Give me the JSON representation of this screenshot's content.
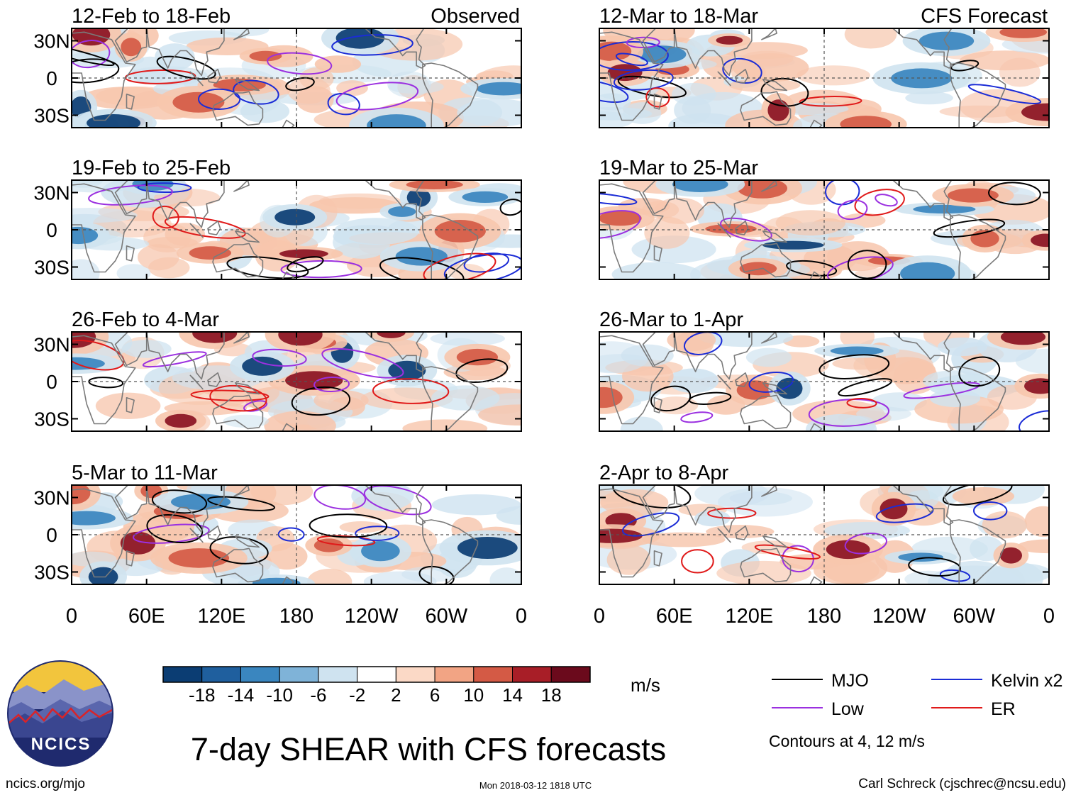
{
  "title": "7-day SHEAR with CFS forecasts",
  "source_url": "ncics.org/mjo",
  "logo_text": "NCICS",
  "timestamp": "Mon 2018-03-12 1818 UTC",
  "author": "Carl Schreck (cjschrec@ncsu.edu)",
  "colors": {
    "strong_neg": "#0b3d73",
    "mid_neg": "#3a86bf",
    "weak_neg": "#cfe3f0",
    "weak_pos": "#f7c6ad",
    "mid_pos": "#d45a45",
    "strong_pos": "#8a1222",
    "mjo": "#000000",
    "kelvin": "#1b2cd6",
    "low": "#9b30e0",
    "er": "#e01a1a",
    "coast": "#7a7a7a"
  },
  "chart_data": {
    "type": "heatmap",
    "title": "7-day SHEAR with CFS forecasts",
    "units": "m/s",
    "contour_note": "Contours at 4, 12 m/s",
    "x_ticks": [
      "0",
      "60E",
      "120E",
      "180",
      "120W",
      "60W",
      "0"
    ],
    "y_ticks": [
      "30N",
      "0",
      "30S"
    ],
    "colorbar": {
      "ticks": [
        "-18",
        "-14",
        "-10",
        "-6",
        "-2",
        "2",
        "6",
        "10",
        "14",
        "18"
      ],
      "colors": [
        "#0b3d73",
        "#1f5f9e",
        "#3a86bf",
        "#7fb3d8",
        "#cfe3f0",
        "#ffffff",
        "#fbd9c6",
        "#f2a484",
        "#d45a45",
        "#a81e27",
        "#6b0a1c"
      ]
    },
    "legend": [
      {
        "label": "MJO",
        "color": "#000000"
      },
      {
        "label": "Kelvin x2",
        "color": "#1b2cd6"
      },
      {
        "label": "Low",
        "color": "#9b30e0"
      },
      {
        "label": "ER",
        "color": "#e01a1a"
      }
    ],
    "panels": [
      {
        "label": "12-Feb to 18-Feb",
        "tag": "Observed",
        "column": "left"
      },
      {
        "label": "19-Feb to 25-Feb",
        "tag": "",
        "column": "left"
      },
      {
        "label": "26-Feb to 4-Mar",
        "tag": "",
        "column": "left"
      },
      {
        "label": "5-Mar to 11-Mar",
        "tag": "",
        "column": "left"
      },
      {
        "label": "12-Mar to 18-Mar",
        "tag": "CFS Forecast",
        "column": "right"
      },
      {
        "label": "19-Mar to 25-Mar",
        "tag": "",
        "column": "right"
      },
      {
        "label": "26-Mar to 1-Apr",
        "tag": "",
        "column": "right"
      },
      {
        "label": "2-Apr to 8-Apr",
        "tag": "",
        "column": "right"
      }
    ]
  }
}
